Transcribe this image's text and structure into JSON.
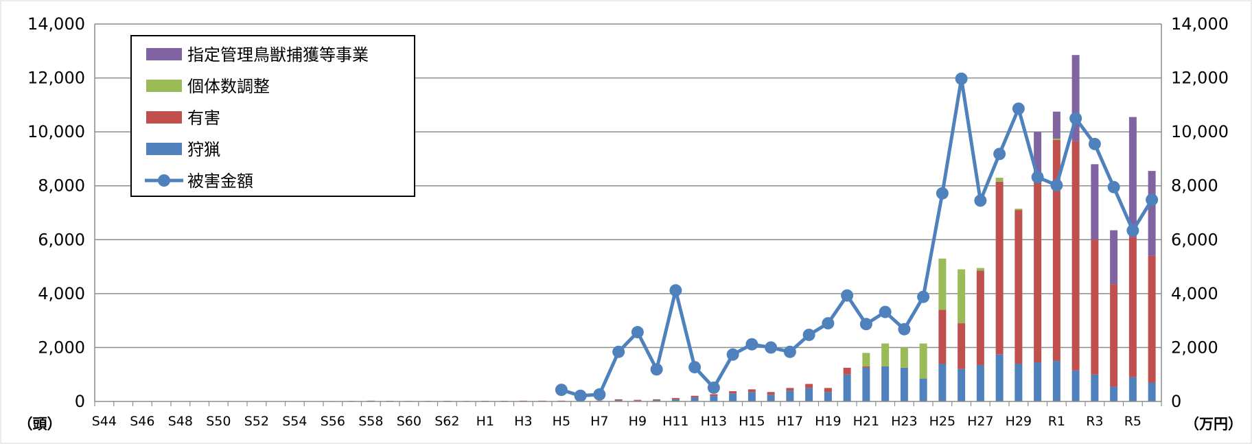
{
  "chart_data": {
    "type": "bar",
    "stacked": true,
    "categories": [
      "S44",
      "S45",
      "S46",
      "S47",
      "S48",
      "S49",
      "S50",
      "S51",
      "S52",
      "S53",
      "S54",
      "S55",
      "S56",
      "S57",
      "S58",
      "S59",
      "S60",
      "S61",
      "S62",
      "S63",
      "H1",
      "H2",
      "H3",
      "H4",
      "H5",
      "H6",
      "H7",
      "H8",
      "H9",
      "H10",
      "H11",
      "H12",
      "H13",
      "H14",
      "H15",
      "H16",
      "H17",
      "H18",
      "H19",
      "H20",
      "H21",
      "H22",
      "H23",
      "H24",
      "H25",
      "H26",
      "H27",
      "H28",
      "H29",
      "H30",
      "R1",
      "R2",
      "R3",
      "R4",
      "R5",
      "R6"
    ],
    "x_tick_labels": [
      "S44",
      "",
      "S46",
      "",
      "S48",
      "",
      "S50",
      "",
      "S52",
      "",
      "S54",
      "",
      "S56",
      "",
      "S58",
      "",
      "S60",
      "",
      "S62",
      "",
      "H1",
      "",
      "H3",
      "",
      "H5",
      "",
      "H7",
      "",
      "H9",
      "",
      "H11",
      "",
      "H13",
      "",
      "H15",
      "",
      "H17",
      "",
      "H19",
      "",
      "H21",
      "",
      "H23",
      "",
      "H25",
      "",
      "H27",
      "",
      "H29",
      "",
      "R1",
      "",
      "R3",
      "",
      "R5",
      ""
    ],
    "series": [
      {
        "name": "狩猟",
        "color": "#4f81bd",
        "values": [
          0,
          0,
          0,
          0,
          0,
          0,
          0,
          0,
          0,
          0,
          0,
          0,
          5,
          10,
          20,
          15,
          10,
          10,
          15,
          10,
          15,
          15,
          20,
          20,
          20,
          10,
          20,
          50,
          30,
          50,
          80,
          150,
          200,
          300,
          350,
          250,
          400,
          500,
          350,
          1000,
          1250,
          1300,
          1250,
          850,
          1400,
          1200,
          1350,
          1750,
          1400,
          1450,
          1500,
          1150,
          1000,
          550,
          900,
          700
        ]
      },
      {
        "name": "有害",
        "color": "#c0504d",
        "values": [
          0,
          0,
          0,
          0,
          0,
          0,
          0,
          0,
          0,
          0,
          0,
          0,
          5,
          10,
          10,
          10,
          10,
          10,
          10,
          10,
          10,
          10,
          10,
          10,
          10,
          10,
          10,
          30,
          30,
          30,
          50,
          60,
          70,
          80,
          100,
          100,
          100,
          150,
          150,
          250,
          50,
          0,
          0,
          0,
          2000,
          1700,
          3500,
          6400,
          5700,
          6700,
          8200,
          8500,
          5000,
          3800,
          5200,
          4700
        ]
      },
      {
        "name": "個体数調整",
        "color": "#9bbb59",
        "values": [
          0,
          0,
          0,
          0,
          0,
          0,
          0,
          0,
          0,
          0,
          0,
          0,
          0,
          0,
          0,
          0,
          0,
          0,
          0,
          0,
          0,
          0,
          0,
          0,
          0,
          0,
          0,
          0,
          0,
          0,
          0,
          0,
          0,
          0,
          0,
          0,
          0,
          0,
          0,
          0,
          500,
          850,
          750,
          1300,
          1900,
          2000,
          100,
          150,
          50,
          50,
          50,
          0,
          0,
          0,
          0,
          0
        ]
      },
      {
        "name": "指定管理鳥獣捕獲等事業",
        "color": "#8064a2",
        "values": [
          0,
          0,
          0,
          0,
          0,
          0,
          0,
          0,
          0,
          0,
          0,
          0,
          0,
          0,
          0,
          0,
          0,
          0,
          0,
          0,
          0,
          0,
          0,
          0,
          0,
          0,
          0,
          0,
          0,
          0,
          0,
          0,
          0,
          0,
          0,
          0,
          0,
          0,
          0,
          0,
          0,
          0,
          0,
          0,
          0,
          0,
          0,
          0,
          0,
          1800,
          1000,
          3200,
          2800,
          2000,
          4450,
          3150
        ]
      }
    ],
    "line": {
      "name": "被害金額",
      "color": "#4f81bd",
      "axis": "right",
      "start_category": "H5",
      "values": [
        430,
        210,
        260,
        1840,
        2570,
        1190,
        4120,
        1270,
        510,
        1740,
        2120,
        2000,
        1840,
        2470,
        2900,
        3930,
        2870,
        3320,
        2680,
        3880,
        7720,
        11970,
        7450,
        9180,
        10860,
        8320,
        8020,
        10500,
        9550,
        7950,
        6340,
        7480
      ]
    },
    "y_ticks": [
      "0",
      "2,000",
      "4,000",
      "6,000",
      "8,000",
      "10,000",
      "12,000",
      "14,000"
    ],
    "ylim": [
      0,
      14000
    ],
    "y2lim": [
      0,
      14000
    ],
    "ylabel": "（頭）",
    "y2label": "（万円）",
    "grid": true,
    "legend_position": "top-left",
    "legend": [
      {
        "label": "指定管理鳥獣捕獲等事業",
        "color": "#8064a2",
        "kind": "bar"
      },
      {
        "label": "個体数調整",
        "color": "#9bbb59",
        "kind": "bar"
      },
      {
        "label": "有害",
        "color": "#c0504d",
        "kind": "bar"
      },
      {
        "label": "狩猟",
        "color": "#4f81bd",
        "kind": "bar"
      },
      {
        "label": "被害金額",
        "color": "#4f81bd",
        "kind": "line"
      }
    ]
  }
}
